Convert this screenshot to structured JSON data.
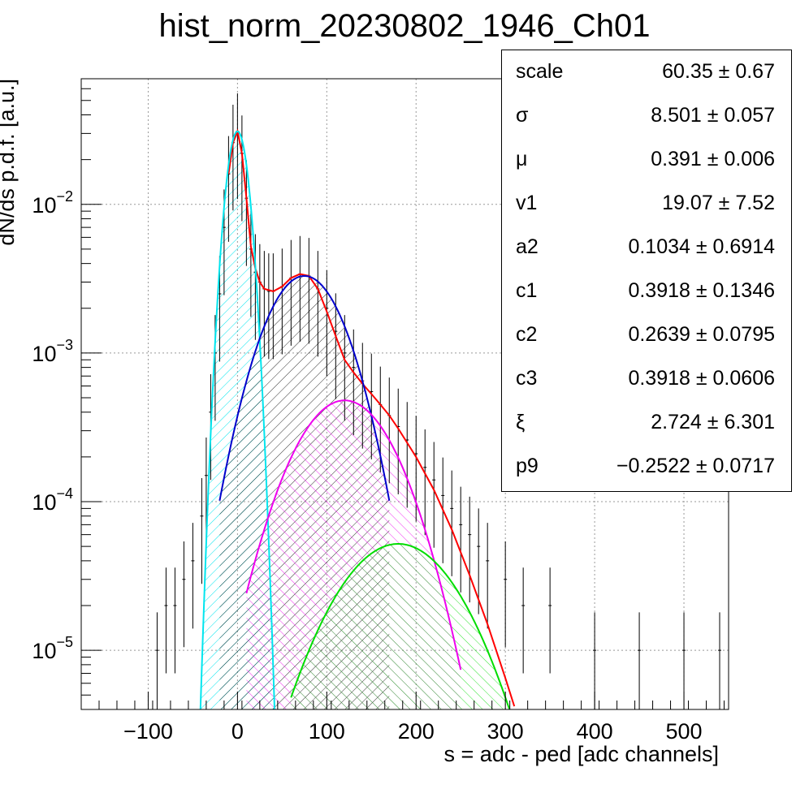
{
  "chart_data": {
    "type": "histogram",
    "title": "hist_norm_20230802_1946_Ch01",
    "xlabel": "s = adc - ped [adc channels]",
    "ylabel": "dN/ds p.d.f. [a.u.]",
    "xlim": [
      -175,
      550
    ],
    "ylim": [
      4e-06,
      0.07
    ],
    "yscale": "log",
    "grid": true,
    "x_ticks": [
      -100,
      0,
      100,
      200,
      300,
      400,
      500
    ],
    "x_tick_labels": [
      "−100",
      "0",
      "100",
      "200",
      "300",
      "400",
      "500"
    ],
    "y_ticks": [
      {
        "value": 1e-05,
        "base": "10",
        "exp": "−5"
      },
      {
        "value": 0.0001,
        "base": "10",
        "exp": "−4"
      },
      {
        "value": 0.001,
        "base": "10",
        "exp": "−3"
      },
      {
        "value": 0.01,
        "base": "10",
        "exp": "−2"
      }
    ],
    "data_histogram": {
      "x": [
        -90,
        -80,
        -70,
        -60,
        -50,
        -40,
        -35,
        -30,
        -25,
        -20,
        -15,
        -10,
        -5,
        0,
        5,
        10,
        15,
        20,
        25,
        30,
        35,
        40,
        50,
        60,
        70,
        80,
        90,
        100,
        110,
        120,
        130,
        140,
        150,
        160,
        170,
        180,
        190,
        200,
        210,
        220,
        230,
        240,
        250,
        260,
        270,
        280,
        300,
        320,
        350,
        400,
        450,
        500,
        540
      ],
      "y": [
        1e-05,
        2e-05,
        2e-05,
        3e-05,
        4e-05,
        8e-05,
        0.00015,
        0.0004,
        0.001,
        0.0025,
        0.007,
        0.016,
        0.026,
        0.031,
        0.022,
        0.011,
        0.005,
        0.0035,
        0.003,
        0.0027,
        0.0026,
        0.0026,
        0.0028,
        0.0032,
        0.0034,
        0.0033,
        0.0027,
        0.002,
        0.0014,
        0.001,
        0.0008,
        0.00065,
        0.00055,
        0.00045,
        0.00038,
        0.00032,
        0.00026,
        0.00021,
        0.00017,
        0.00014,
        0.00011,
        9e-05,
        7e-05,
        6e-05,
        5e-05,
        4e-05,
        3e-05,
        2e-05,
        2e-05,
        1e-05,
        1e-05,
        1e-05,
        1e-05
      ],
      "color": "#000000"
    },
    "series": [
      {
        "x": [
          -10,
          -5,
          0,
          5,
          10,
          15,
          20,
          25,
          30,
          40,
          50,
          60,
          70,
          80,
          90,
          100,
          110,
          120,
          130,
          140,
          150,
          160,
          170,
          180,
          200,
          220,
          240,
          260,
          280,
          300,
          310
        ],
        "y": [
          0.016,
          0.026,
          0.031,
          0.022,
          0.011,
          0.0052,
          0.0037,
          0.003,
          0.0027,
          0.0026,
          0.0028,
          0.0032,
          0.0034,
          0.0033,
          0.0027,
          0.0019,
          0.0013,
          0.0009,
          0.00074,
          0.00062,
          0.00053,
          0.00045,
          0.00038,
          0.00031,
          0.0002,
          0.00012,
          6.5e-05,
          3.2e-05,
          1.5e-05,
          6.5e-06,
          4.2e-06
        ],
        "color": "#ff0000",
        "fill": false
      },
      {
        "mu": 0,
        "sigma": 9.8,
        "peak": 0.031,
        "xmin": -45,
        "xmax": 45,
        "color": "#00e5ee",
        "fill": true,
        "hatch": "cyan"
      },
      {
        "mu": 75,
        "sigma": 36,
        "peak": 0.0033,
        "xmin": -20,
        "xmax": 170,
        "color": "#0000cc",
        "fill": true,
        "hatch": "black"
      },
      {
        "mu": 120,
        "sigma": 45,
        "peak": 0.00048,
        "xmin": 10,
        "xmax": 250,
        "color": "#ee00ee",
        "fill": true,
        "hatch": "magenta"
      },
      {
        "mu": 180,
        "sigma": 55,
        "peak": 5.2e-05,
        "xmin": 60,
        "xmax": 310,
        "color": "#00dd00",
        "fill": true,
        "hatch": "green"
      }
    ],
    "stats": [
      {
        "name": "scale",
        "value": "60.35",
        "error": "0.67"
      },
      {
        "name": "σ",
        "value": "8.501",
        "error": "0.057"
      },
      {
        "name": "μ",
        "value": "0.391",
        "error": "0.006"
      },
      {
        "name": "v1",
        "value": "19.07",
        "error": "7.52"
      },
      {
        "name": "a2",
        "value": "0.1034",
        "error": "0.6914"
      },
      {
        "name": "c1",
        "value": "0.3918",
        "error": "0.1346"
      },
      {
        "name": "c2",
        "value": "0.2639",
        "error": "0.0795"
      },
      {
        "name": "c3",
        "value": "0.3918",
        "error": "0.0606"
      },
      {
        "name": "ξ",
        "value": "2.724",
        "error": "6.301"
      },
      {
        "name": "p9",
        "value": "−0.2522",
        "error": "0.0717"
      }
    ],
    "pm_symbol": "±"
  }
}
